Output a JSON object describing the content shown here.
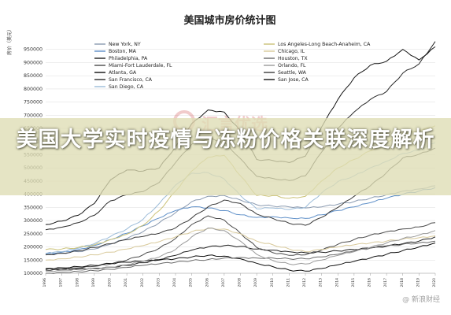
{
  "overlay": {
    "title": "美国大学实时疫情与冻粉价格关联深度解析",
    "watermark": "汇言优选",
    "source_mark": "@ 新浪财经"
  },
  "chart_data": {
    "type": "line",
    "title": "美国城市房价统计图",
    "ylabel": "房价（美元）",
    "xlabel": "",
    "ylim": [
      100000,
      1000000
    ],
    "yticks": [
      100000,
      150000,
      200000,
      250000,
      300000,
      350000,
      400000,
      450000,
      500000,
      550000,
      600000,
      650000,
      700000,
      750000,
      800000,
      850000,
      900000,
      950000
    ],
    "ytick_labels": [
      "100000",
      "150000",
      "200000",
      "250000",
      "300000",
      "350000",
      "400000",
      "450000",
      "500000",
      "550000",
      "600000",
      "650000",
      "700000",
      "750000",
      "800000",
      "850000",
      "900000",
      "950000"
    ],
    "x": [
      1996,
      1997,
      1998,
      1999,
      2000,
      2001,
      2002,
      2003,
      2004,
      2005,
      2006,
      2007,
      2008,
      2009,
      2010,
      2011,
      2012,
      2013,
      2014,
      2015,
      2016,
      2017,
      2018,
      2019,
      2020
    ],
    "grid": true,
    "legend_position": "top",
    "series": [
      {
        "name": "New York, NY",
        "color": "#8a9ab0",
        "values": [
          172000,
          176000,
          182000,
          192000,
          210000,
          232000,
          258000,
          292000,
          330000,
          372000,
          392000,
          395000,
          378000,
          360000,
          355000,
          352000,
          348000,
          352000,
          362000,
          372000,
          385000,
          398000,
          412000,
          420000,
          432000
        ]
      },
      {
        "name": "Boston, MA",
        "color": "#5e8fc8",
        "values": [
          175000,
          180000,
          190000,
          205000,
          228000,
          252000,
          280000,
          310000,
          338000,
          352000,
          348000,
          338000,
          322000,
          312000,
          315000,
          310000,
          308000,
          322000,
          338000,
          352000,
          368000,
          385000,
          400000,
          412000,
          425000
        ]
      },
      {
        "name": "Philadelphia, PA",
        "color": "#1f1f1f",
        "values": [
          115000,
          116000,
          117000,
          119000,
          123000,
          130000,
          140000,
          152000,
          168000,
          188000,
          200000,
          205000,
          202000,
          192000,
          188000,
          182000,
          178000,
          180000,
          185000,
          190000,
          196000,
          204000,
          212000,
          222000,
          238000
        ]
      },
      {
        "name": "Miami-Fort Lauderdale, FL",
        "color": "#4a4a4a",
        "values": [
          112000,
          115000,
          120000,
          126000,
          135000,
          150000,
          170000,
          195000,
          232000,
          285000,
          318000,
          302000,
          252000,
          198000,
          178000,
          168000,
          170000,
          188000,
          210000,
          228000,
          245000,
          258000,
          268000,
          276000,
          292000
        ]
      },
      {
        "name": "Atlanta, GA",
        "color": "#0e0e0e",
        "values": [
          118000,
          121000,
          125000,
          130000,
          137000,
          142000,
          146000,
          150000,
          155000,
          162000,
          168000,
          165000,
          155000,
          138000,
          125000,
          112000,
          108000,
          118000,
          132000,
          145000,
          158000,
          172000,
          186000,
          200000,
          215000
        ]
      },
      {
        "name": "San Francisco, CA",
        "color": "#2a2a2a",
        "values": [
          265000,
          275000,
          292000,
          320000,
          375000,
          398000,
          410000,
          445000,
          520000,
          590000,
          612000,
          598000,
          535000,
          468000,
          460000,
          452000,
          470000,
          560000,
          650000,
          712000,
          760000,
          790000,
          860000,
          895000,
          980000
        ]
      },
      {
        "name": "San Diego, CA",
        "color": "#9bbbd8",
        "values": [
          175000,
          182000,
          195000,
          212000,
          240000,
          268000,
          305000,
          365000,
          435000,
          480000,
          482000,
          458000,
          395000,
          345000,
          348000,
          342000,
          350000,
          405000,
          448000,
          470000,
          500000,
          525000,
          555000,
          568000,
          595000
        ]
      },
      {
        "name": "Los Angeles-Long Beach-Anaheim, CA",
        "color": "#cbc278",
        "values": [
          190000,
          192000,
          198000,
          208000,
          228000,
          248000,
          282000,
          338000,
          412000,
          488000,
          540000,
          548000,
          470000,
          395000,
          395000,
          385000,
          392000,
          450000,
          500000,
          532000,
          565000,
          598000,
          628000,
          640000,
          660000
        ]
      },
      {
        "name": "Chicago, IL",
        "color": "#d8c99a",
        "values": [
          150000,
          155000,
          162000,
          170000,
          180000,
          192000,
          205000,
          220000,
          238000,
          258000,
          270000,
          268000,
          250000,
          222000,
          208000,
          192000,
          182000,
          190000,
          200000,
          208000,
          215000,
          222000,
          230000,
          235000,
          242000
        ]
      },
      {
        "name": "Houston, TX",
        "color": "#6a6a6a",
        "values": [
          100000,
          103000,
          106000,
          110000,
          115000,
          122000,
          130000,
          136000,
          142000,
          148000,
          152000,
          158000,
          160000,
          158000,
          158000,
          155000,
          155000,
          162000,
          172000,
          185000,
          195000,
          202000,
          210000,
          215000,
          222000
        ]
      },
      {
        "name": "Orlando, FL",
        "color": "#9a9a9a",
        "values": [
          108000,
          110000,
          113000,
          117000,
          123000,
          132000,
          145000,
          162000,
          190000,
          238000,
          272000,
          262000,
          222000,
          172000,
          148000,
          135000,
          135000,
          150000,
          168000,
          182000,
          198000,
          215000,
          232000,
          245000,
          262000
        ]
      },
      {
        "name": "Seattle, WA",
        "color": "#3a3a3a",
        "values": [
          170000,
          176000,
          185000,
          198000,
          212000,
          228000,
          240000,
          252000,
          272000,
          310000,
          352000,
          378000,
          365000,
          325000,
          308000,
          290000,
          282000,
          312000,
          350000,
          392000,
          432000,
          482000,
          538000,
          552000,
          575000
        ]
      },
      {
        "name": "San Jose, CA",
        "color": "#141414",
        "values": [
          285000,
          298000,
          320000,
          365000,
          455000,
          492000,
          488000,
          500000,
          580000,
          668000,
          720000,
          712000,
          640000,
          532000,
          528000,
          520000,
          545000,
          655000,
          760000,
          842000,
          890000,
          905000,
          950000,
          910000,
          960000
        ]
      }
    ]
  }
}
